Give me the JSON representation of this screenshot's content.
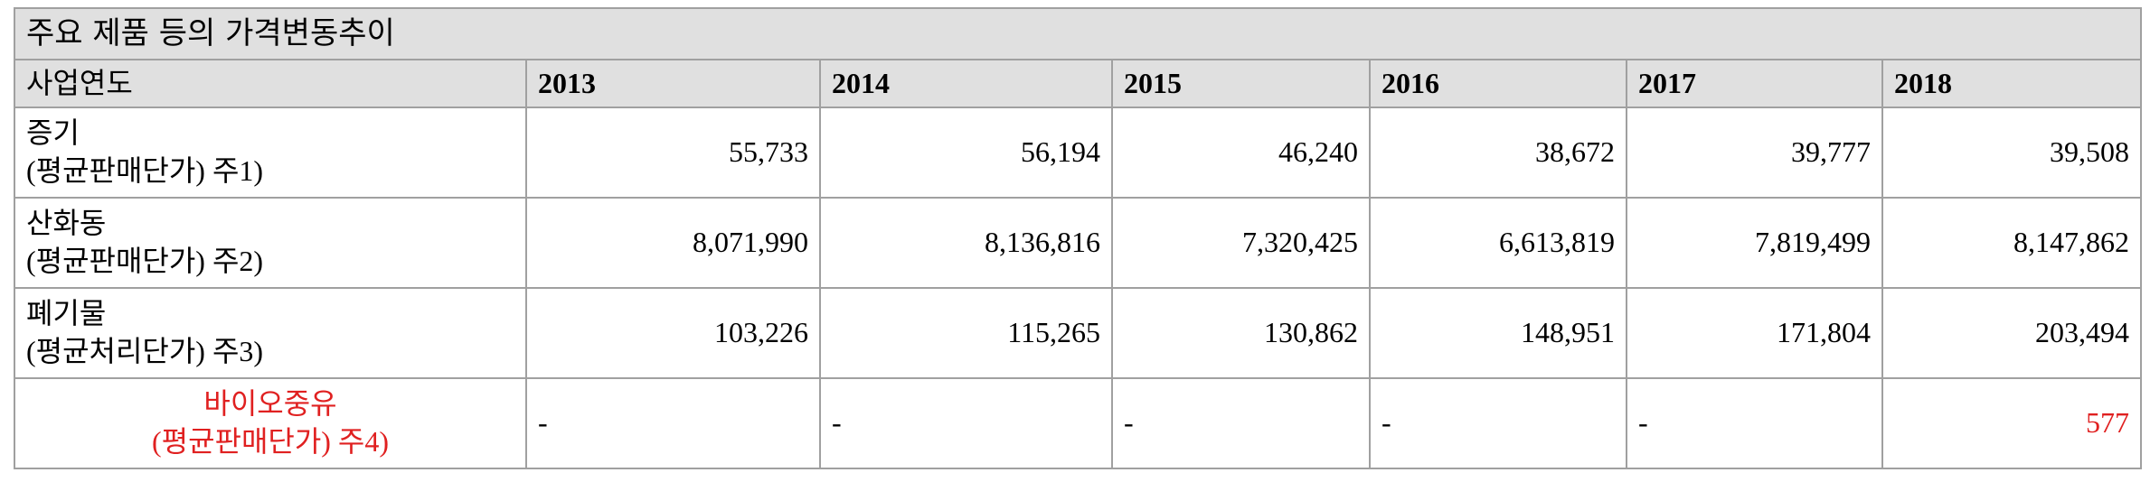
{
  "table": {
    "title": "주요 제품 등의 가격변동추이",
    "header": [
      "사업연도",
      "2013",
      "2014",
      "2015",
      "2016",
      "2017",
      "2018"
    ],
    "rows": [
      {
        "label": [
          "증기",
          "(평균판매단가) 주1)"
        ],
        "values": [
          "55,733",
          "56,194",
          "46,240",
          "38,672",
          "39,777",
          "39,508"
        ]
      },
      {
        "label": [
          "산화동",
          "(평균판매단가) 주2)"
        ],
        "values": [
          "8,071,990",
          "8,136,816",
          "7,320,425",
          "6,613,819",
          "7,819,499",
          "8,147,862"
        ]
      },
      {
        "label": [
          "폐기물",
          "(평균처리단가) 주3)"
        ],
        "values": [
          "103,226",
          "115,265",
          "130,862",
          "148,951",
          "171,804",
          "203,494"
        ]
      },
      {
        "label": [
          "바이오중유",
          "(평균판매단가) 주4)"
        ],
        "values": [
          "-",
          "-",
          "-",
          "-",
          "-",
          "577"
        ]
      }
    ]
  }
}
